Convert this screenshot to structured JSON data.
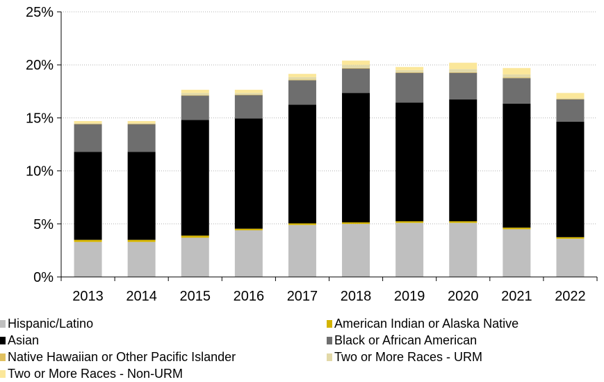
{
  "chart_data": {
    "type": "bar",
    "stacked": true,
    "categories": [
      "2013",
      "2014",
      "2015",
      "2016",
      "2017",
      "2018",
      "2019",
      "2020",
      "2021",
      "2022"
    ],
    "ylim": [
      0,
      25
    ],
    "y_ticks": [
      0,
      5,
      10,
      15,
      20,
      25
    ],
    "y_tick_labels": [
      "0%",
      "5%",
      "10%",
      "15%",
      "20%",
      "25%"
    ],
    "grid": "horizontal-dotted",
    "legend_position": "bottom",
    "series": [
      {
        "name": "Hispanic/Latino",
        "color": "#bfbfbf",
        "values": [
          3.3,
          3.3,
          3.7,
          4.4,
          4.9,
          5.0,
          5.1,
          5.1,
          4.5,
          3.6
        ]
      },
      {
        "name": "American Indian or Alaska Native",
        "color": "#d4b400",
        "values": [
          0.2,
          0.2,
          0.2,
          0.15,
          0.15,
          0.15,
          0.15,
          0.15,
          0.15,
          0.15
        ]
      },
      {
        "name": "Asian",
        "color": "#000000",
        "values": [
          8.3,
          8.3,
          10.9,
          10.4,
          11.2,
          12.2,
          11.2,
          11.5,
          11.7,
          10.9
        ]
      },
      {
        "name": "Black or African American",
        "color": "#6e6e6e",
        "values": [
          2.6,
          2.6,
          2.3,
          2.2,
          2.3,
          2.3,
          2.8,
          2.5,
          2.4,
          2.1
        ]
      },
      {
        "name": "Native Hawaiian or Other Pacific Islander",
        "color": "#e0c060",
        "values": [
          0.05,
          0.05,
          0.05,
          0.05,
          0.05,
          0.05,
          0.05,
          0.05,
          0.05,
          0.05
        ]
      },
      {
        "name": "Two or More Races - URM",
        "color": "#e2d9a8",
        "values": [
          0.05,
          0.05,
          0.2,
          0.15,
          0.25,
          0.3,
          0.2,
          0.3,
          0.3,
          0.05
        ]
      },
      {
        "name": "Two or More Races - Non-URM",
        "color": "#fbe79a",
        "values": [
          0.2,
          0.2,
          0.3,
          0.3,
          0.3,
          0.4,
          0.3,
          0.6,
          0.6,
          0.5
        ]
      }
    ]
  }
}
